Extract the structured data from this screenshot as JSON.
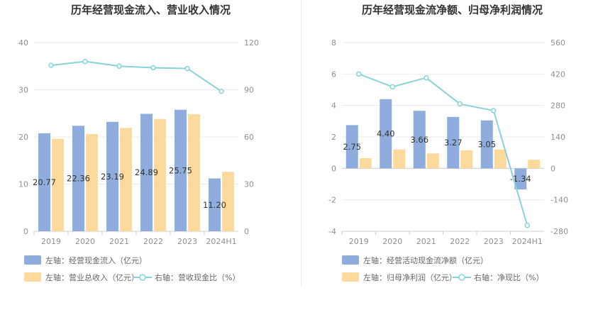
{
  "chart_data": [
    {
      "type": "bar",
      "title": "历年经营现金流入、营业收入情况",
      "categories": [
        "2019",
        "2020",
        "2021",
        "2022",
        "2023",
        "2024H1"
      ],
      "series": [
        {
          "name": "左轴：经营现金流入（亿元）",
          "axis": "left",
          "kind": "bar",
          "values": [
            20.77,
            22.36,
            23.19,
            24.89,
            25.75,
            11.2
          ],
          "labels": [
            "20.77",
            "22.36",
            "23.19",
            "24.89",
            "25.75",
            "11.20"
          ]
        },
        {
          "name": "左轴：营业总收入（亿元）",
          "axis": "left",
          "kind": "bar",
          "values": [
            19.6,
            20.6,
            21.9,
            23.8,
            24.8,
            12.6
          ]
        },
        {
          "name": "右轴：营收现金比（%）",
          "axis": "right",
          "kind": "line",
          "values": [
            105.5,
            108,
            105,
            104,
            103.5,
            89
          ]
        }
      ],
      "left_axis": {
        "ylim": [
          0,
          40
        ],
        "ticks": [
          "0",
          "10",
          "20",
          "30",
          "40"
        ]
      },
      "right_axis": {
        "ylim": [
          0,
          120
        ],
        "ticks": [
          "0",
          "30",
          "60",
          "90",
          "120"
        ]
      },
      "colors": {
        "bar1": "#8eacdc",
        "bar2": "#fdd99b",
        "line": "#86d3d8"
      },
      "legend_position": "bottom"
    },
    {
      "type": "bar",
      "title": "历年经营现金流净额、归母净利润情况",
      "categories": [
        "2019",
        "2020",
        "2021",
        "2022",
        "2023",
        "2024H1"
      ],
      "series": [
        {
          "name": "左轴：经营活动现金流净额（亿元）",
          "axis": "left",
          "kind": "bar",
          "values": [
            2.75,
            4.4,
            3.66,
            3.27,
            3.05,
            -1.34
          ],
          "labels": [
            "2.75",
            "4.40",
            "3.66",
            "3.27",
            "3.05",
            "-1.34"
          ]
        },
        {
          "name": "左轴：归母净利润（亿元）",
          "axis": "left",
          "kind": "bar",
          "values": [
            0.65,
            1.2,
            0.95,
            1.15,
            1.2,
            0.55
          ]
        },
        {
          "name": "右轴：净现比（%）",
          "axis": "right",
          "kind": "line",
          "values": [
            420,
            363,
            403,
            287,
            257,
            -254
          ]
        }
      ],
      "left_axis": {
        "ylim": [
          -4,
          8
        ],
        "ticks": [
          "-4",
          "-2",
          "0",
          "2",
          "4",
          "6",
          "8"
        ]
      },
      "right_axis": {
        "ylim": [
          -280,
          560
        ],
        "ticks": [
          "-280",
          "-140",
          "0",
          "140",
          "280",
          "420",
          "560"
        ]
      },
      "colors": {
        "bar1": "#8eacdc",
        "bar2": "#fdd99b",
        "line": "#86d3d8"
      },
      "legend_position": "bottom"
    }
  ]
}
